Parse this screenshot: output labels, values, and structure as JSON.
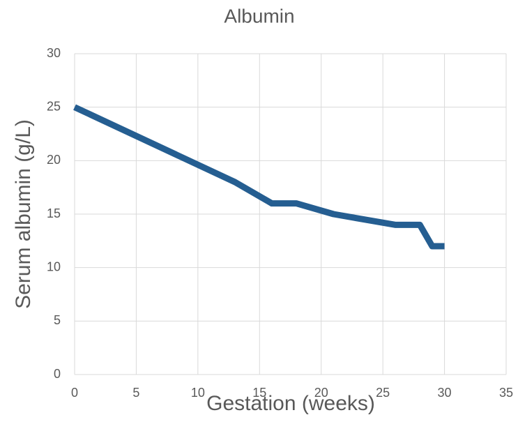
{
  "chart_data": {
    "type": "line",
    "title": "Albumin",
    "x_label": "Gestation (weeks)",
    "y_label": "Serum albumin (g/L)",
    "x": [
      0,
      13,
      16,
      18,
      21,
      26,
      28,
      29,
      30
    ],
    "series": [
      {
        "name": "Albumin",
        "color": "#255e91",
        "values": [
          25,
          18,
          16,
          16,
          15,
          14,
          14,
          12,
          12
        ]
      }
    ],
    "xlim": [
      0,
      35
    ],
    "xticks": [
      0,
      5,
      10,
      15,
      20,
      25,
      30,
      35
    ],
    "ylim": [
      0,
      30
    ],
    "yticks": [
      0,
      5,
      10,
      15,
      20,
      25,
      30
    ],
    "grid": true,
    "legend": false
  }
}
